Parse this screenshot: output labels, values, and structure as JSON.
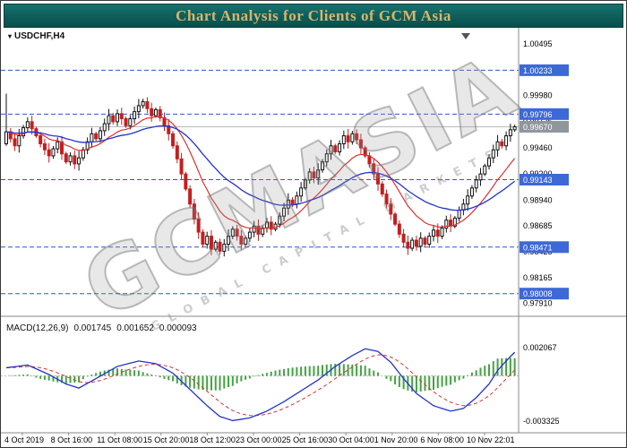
{
  "window": {
    "title": "Chart Analysis for Clients of GCM Asia"
  },
  "colors": {
    "header_bg": "#0d5d5a",
    "header_text": "#d9b46c",
    "candle_up": "#111111",
    "candle_down": "#c41f1f",
    "ma_fast_red": "#e03030",
    "ma_slow_blue": "#2433cc",
    "level_line_blue": "#2f55d4",
    "badge_blue": "#3d68d8",
    "current_line_gray": "#b5bac0",
    "current_badge_gray": "#8f969c",
    "macd_line_blue": "#2433cc",
    "macd_signal_red": "#e03030",
    "macd_hist_green": "#44a344",
    "axis_text": "#000000"
  },
  "chart": {
    "instrument_label": "USDCHF,H4",
    "marker_glyph": "▾",
    "watermark_main": "GCMASIA",
    "watermark_sub": "GLOBAL CAPITAL MARKETS",
    "price_axis": {
      "plain_ticks": [
        "1.00495",
        "0.99980",
        "0.99725",
        "0.99460",
        "0.99200",
        "0.98940",
        "0.98685",
        "0.98425",
        "0.98165",
        "0.97910"
      ],
      "level_badges": [
        "1.00233",
        "0.99796",
        "0.99143",
        "0.98471",
        "0.98008"
      ],
      "current_price": "0.99670"
    },
    "time_axis": [
      "4 Oct 2019",
      "8 Oct 16:00",
      "11 Oct 08:00",
      "15 Oct 20:00",
      "18 Oct 12:00",
      "23 Oct 00:00",
      "25 Oct 16:00",
      "30 Oct 04:00",
      "1 Nov 20:00",
      "6 Nov 08:00",
      "10 Nov 22:01"
    ]
  },
  "macd_panel": {
    "label": "MACD(12,26,9)",
    "main_value": "0.001745",
    "signal_value": "0.001652",
    "hist_value": "0.000093",
    "axis_ticks": [
      "0.002067",
      "-0.003325"
    ]
  },
  "chart_data": [
    {
      "type": "candlestick",
      "symbol": "USDCHF",
      "timeframe": "H4",
      "x_labels": [
        "4 Oct 2019",
        "8 Oct 16:00",
        "11 Oct 08:00",
        "15 Oct 20:00",
        "18 Oct 12:00",
        "23 Oct 00:00",
        "25 Oct 16:00",
        "30 Oct 04:00",
        "1 Nov 20:00",
        "6 Nov 08:00",
        "10 Nov 22:01"
      ],
      "first_open": 0.995,
      "spike_high": 1.0,
      "spike_low": 0.9948,
      "closes": [
        0.9962,
        0.9955,
        0.9948,
        0.9958,
        0.9966,
        0.9972,
        0.9965,
        0.9958,
        0.995,
        0.9944,
        0.9938,
        0.9945,
        0.9952,
        0.994,
        0.9932,
        0.9938,
        0.993,
        0.9936,
        0.9944,
        0.9952,
        0.996,
        0.9955,
        0.9963,
        0.997,
        0.9978,
        0.9972,
        0.998,
        0.9975,
        0.9968,
        0.9975,
        0.9982,
        0.9988,
        0.9992,
        0.9985,
        0.9978,
        0.9984,
        0.9976,
        0.9968,
        0.996,
        0.9948,
        0.9935,
        0.992,
        0.9905,
        0.989,
        0.9875,
        0.9862,
        0.985,
        0.9858,
        0.9845,
        0.9852,
        0.9843,
        0.985,
        0.9858,
        0.9865,
        0.9858,
        0.985,
        0.9856,
        0.9862,
        0.9868,
        0.986,
        0.9866,
        0.9872,
        0.9865,
        0.987,
        0.9878,
        0.9886,
        0.9894,
        0.989,
        0.9898,
        0.9906,
        0.9914,
        0.9922,
        0.9916,
        0.9924,
        0.9932,
        0.994,
        0.9948,
        0.9942,
        0.995,
        0.9958,
        0.9952,
        0.996,
        0.9954,
        0.9946,
        0.9938,
        0.993,
        0.992,
        0.991,
        0.99,
        0.989,
        0.988,
        0.987,
        0.986,
        0.9852,
        0.9846,
        0.9854,
        0.9848,
        0.9856,
        0.985,
        0.9858,
        0.9864,
        0.9858,
        0.9866,
        0.9874,
        0.9868,
        0.9876,
        0.9884,
        0.989,
        0.9898,
        0.9906,
        0.9914,
        0.992,
        0.9928,
        0.9936,
        0.9944,
        0.9952,
        0.9948,
        0.9958,
        0.9964,
        0.9967
      ],
      "horizontal_levels": [
        1.00233,
        0.99796,
        0.99143,
        0.98471,
        0.98008
      ],
      "current_price": 0.9967,
      "y_range": [
        0.978,
        1.0062
      ],
      "axis_ticks": [
        1.00495,
        0.9998,
        0.99725,
        0.9946,
        0.992,
        0.9894,
        0.98685,
        0.98425,
        0.98165,
        0.9791
      ],
      "ma_fast_period": 13,
      "ma_slow_period": 34
    },
    {
      "type": "macd",
      "params": [
        12,
        26,
        9
      ],
      "last_values": {
        "macd": 0.001745,
        "signal": 0.001652,
        "histogram": 9.3e-05
      },
      "macd_points": [
        [
          0,
          0.0006
        ],
        [
          5,
          0.0008
        ],
        [
          10,
          0.0001
        ],
        [
          14,
          -0.0006
        ],
        [
          17,
          -0.0009
        ],
        [
          21,
          -0.0002
        ],
        [
          26,
          0.0007
        ],
        [
          31,
          0.0011
        ],
        [
          35,
          0.0009
        ],
        [
          39,
          0.0002
        ],
        [
          43,
          -0.001
        ],
        [
          47,
          -0.0022
        ],
        [
          50,
          -0.003
        ],
        [
          53,
          -0.0033
        ],
        [
          57,
          -0.0031
        ],
        [
          61,
          -0.0026
        ],
        [
          65,
          -0.0019
        ],
        [
          69,
          -0.0011
        ],
        [
          73,
          -0.0003
        ],
        [
          77,
          0.0007
        ],
        [
          81,
          0.0015
        ],
        [
          84,
          0.002
        ],
        [
          87,
          0.0018
        ],
        [
          90,
          0.001
        ],
        [
          93,
          -0.0002
        ],
        [
          96,
          -0.0013
        ],
        [
          100,
          -0.0022
        ],
        [
          104,
          -0.0026
        ],
        [
          107,
          -0.0024
        ],
        [
          110,
          -0.0016
        ],
        [
          113,
          -0.0006
        ],
        [
          115,
          0.0004
        ],
        [
          117,
          0.0011
        ],
        [
          119,
          0.001745
        ]
      ],
      "signal_smoothing_alpha": 0.2,
      "y_range": [
        -0.0038,
        0.004
      ],
      "axis_ticks": [
        0.002067,
        -0.003325
      ]
    }
  ]
}
